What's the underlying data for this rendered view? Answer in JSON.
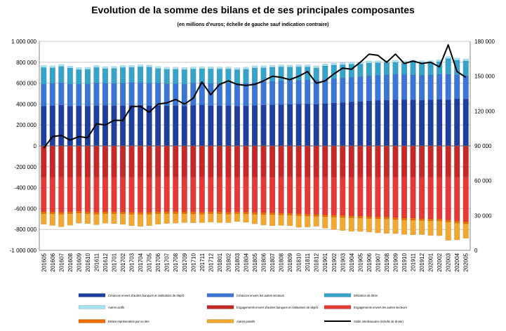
{
  "chart_data": {
    "type": "bar",
    "title": "Evolution  de la somme des bilans  et de ses principales  composantes",
    "subtitle": "(en millions d'euros; échelle de gauche sauf indication contraire)",
    "categories": [
      "201605",
      "201606",
      "201607",
      "201608",
      "201609",
      "201610",
      "201611",
      "201612",
      "201701",
      "201702",
      "201703",
      "201704",
      "201705",
      "201706",
      "201707",
      "201708",
      "201709",
      "201710",
      "201711",
      "201712",
      "201801",
      "201802",
      "201803",
      "201804",
      "201805",
      "201806",
      "201807",
      "201808",
      "201809",
      "201810",
      "201811",
      "201812",
      "201901",
      "201902",
      "201903",
      "201904",
      "201905",
      "201906",
      "201907",
      "201908",
      "201909",
      "201910",
      "201911",
      "201912",
      "202001",
      "202002",
      "202003",
      "202004",
      "202005"
    ],
    "left_axis": {
      "ylim": [
        -1000000,
        1000000
      ],
      "ticks": [
        1000000,
        800000,
        600000,
        400000,
        200000,
        0,
        -200000,
        -400000,
        -600000,
        -800000,
        -1000000
      ],
      "tick_labels": [
        "1 000 000",
        "800 000",
        "600 000",
        "400 000",
        "200 000",
        "0",
        "-200 000",
        "-400 000",
        "-600 000",
        "-800 000",
        "-1 000 000"
      ]
    },
    "right_axis": {
      "ylim": [
        0,
        180000
      ],
      "ticks": [
        180000,
        150000,
        120000,
        90000,
        60000,
        30000,
        0
      ],
      "tick_labels": [
        "180 000",
        "150 000",
        "120 000",
        "90 000",
        "60 000",
        "30 000",
        "0"
      ]
    },
    "grid": true,
    "legend_position": "bottom",
    "stack_groups": {
      "positive": [
        "Créances envers d'autres banques et institutions de dépôt",
        "Créances envers les autres secteurs",
        "Détention de titres",
        "Autres actifs"
      ],
      "negative": [
        "Engagements envers d'autres banques et institutions de dépôt",
        "Engagements envers les autres secteurs",
        "Dettes représentées par un titre",
        "Autres passifs"
      ]
    },
    "series": [
      {
        "name": "Créances envers d'autres banques et institutions de dépôt",
        "color": "#1f3f9f",
        "axis": "left",
        "values": [
          380000,
          385000,
          390000,
          380000,
          382000,
          380000,
          385000,
          388000,
          383000,
          385000,
          388000,
          390000,
          385000,
          388000,
          383000,
          385000,
          380000,
          388000,
          392000,
          385000,
          383000,
          385000,
          380000,
          382000,
          386000,
          390000,
          392000,
          395000,
          398000,
          400000,
          402000,
          398000,
          405000,
          410000,
          415000,
          420000,
          425000,
          430000,
          435000,
          438000,
          440000,
          442000,
          440000,
          438000,
          440000,
          445000,
          440000,
          450000,
          448000
        ]
      },
      {
        "name": "Créances envers les autres secteurs",
        "color": "#3b75d6",
        "axis": "left",
        "values": [
          210000,
          212000,
          215000,
          210000,
          208000,
          212000,
          215000,
          210000,
          213000,
          215000,
          218000,
          216000,
          214000,
          212000,
          210000,
          208000,
          210000,
          212000,
          214000,
          212000,
          210000,
          215000,
          218000,
          216000,
          220000,
          222000,
          225000,
          228000,
          226000,
          224000,
          226000,
          228000,
          230000,
          232000,
          235000,
          236000,
          238000,
          240000,
          240000,
          242000,
          244000,
          240000,
          238000,
          236000,
          238000,
          240000,
          245000,
          230000,
          225000
        ]
      },
      {
        "name": "Détention de titres",
        "color": "#36a3c9",
        "axis": "left",
        "values": [
          160000,
          150000,
          155000,
          155000,
          140000,
          140000,
          150000,
          140000,
          145000,
          150000,
          145000,
          150000,
          155000,
          140000,
          140000,
          140000,
          140000,
          135000,
          132000,
          140000,
          142000,
          135000,
          130000,
          135000,
          140000,
          135000,
          135000,
          132000,
          130000,
          132000,
          128000,
          120000,
          130000,
          130000,
          126000,
          125000,
          120000,
          122000,
          120000,
          118000,
          115000,
          112000,
          125000,
          120000,
          118000,
          120000,
          150000,
          140000,
          140000
        ]
      },
      {
        "name": "Autres actifs",
        "color": "#a5e3f2",
        "axis": "left",
        "values": [
          20000,
          20000,
          20000,
          20000,
          20000,
          20000,
          20000,
          20000,
          20000,
          20000,
          20000,
          20000,
          20000,
          20000,
          20000,
          20000,
          20000,
          20000,
          20000,
          20000,
          20000,
          20000,
          20000,
          20000,
          20000,
          20000,
          20000,
          20000,
          20000,
          20000,
          20000,
          20000,
          20000,
          20000,
          20000,
          20000,
          20000,
          20000,
          20000,
          20000,
          20000,
          20000,
          20000,
          20000,
          20000,
          20000,
          20000,
          20000,
          20000
        ]
      },
      {
        "name": "Engagements envers d'autres banques et institutions de dépôt",
        "color": "#c62828",
        "axis": "left",
        "values": [
          -300000,
          -300000,
          -300000,
          -300000,
          -300000,
          -300000,
          -300000,
          -300000,
          -300000,
          -300000,
          -300000,
          -300000,
          -300000,
          -300000,
          -300000,
          -300000,
          -300000,
          -300000,
          -300000,
          -300000,
          -300000,
          -300000,
          -300000,
          -300000,
          -300000,
          -300000,
          -300000,
          -300000,
          -300000,
          -300000,
          -300000,
          -300000,
          -300000,
          -300000,
          -300000,
          -300000,
          -300000,
          -300000,
          -300000,
          -300000,
          -300000,
          -300000,
          -300000,
          -300000,
          -300000,
          -300000,
          -300000,
          -300000,
          -300000
        ]
      },
      {
        "name": "Engagements envers les autres secteurs",
        "color": "#e53935",
        "axis": "left",
        "values": [
          -330000,
          -332000,
          -335000,
          -330000,
          -325000,
          -330000,
          -335000,
          -330000,
          -330000,
          -332000,
          -335000,
          -336000,
          -334000,
          -330000,
          -328000,
          -330000,
          -330000,
          -332000,
          -335000,
          -330000,
          -330000,
          -335000,
          -330000,
          -332000,
          -336000,
          -338000,
          -340000,
          -342000,
          -345000,
          -350000,
          -352000,
          -355000,
          -358000,
          -362000,
          -365000,
          -368000,
          -372000,
          -375000,
          -378000,
          -380000,
          -385000,
          -388000,
          -392000,
          -395000,
          -398000,
          -400000,
          -410000,
          -420000,
          -425000
        ]
      },
      {
        "name": "Dettes représentées par un titre",
        "color": "#ef6c00",
        "axis": "left",
        "values": [
          -20000,
          -20000,
          -20000,
          -20000,
          -20000,
          -20000,
          -20000,
          -20000,
          -20000,
          -20000,
          -20000,
          -20000,
          -20000,
          -20000,
          -20000,
          -20000,
          -20000,
          -20000,
          -20000,
          -20000,
          -20000,
          -20000,
          -20000,
          -20000,
          -20000,
          -20000,
          -20000,
          -20000,
          -20000,
          -20000,
          -20000,
          -20000,
          -20000,
          -20000,
          -20000,
          -20000,
          -20000,
          -20000,
          -20000,
          -20000,
          -20000,
          -20000,
          -20000,
          -20000,
          -20000,
          -20000,
          -20000,
          -20000,
          -20000
        ]
      },
      {
        "name": "Autres passifs",
        "color": "#f0a830",
        "axis": "left",
        "values": [
          -100000,
          -110000,
          -120000,
          -110000,
          -95000,
          -95000,
          -100000,
          -90000,
          -95000,
          -100000,
          -110000,
          -115000,
          -110000,
          -100000,
          -95000,
          -90000,
          -85000,
          -85000,
          -80000,
          -80000,
          -85000,
          -80000,
          -75000,
          -80000,
          -90000,
          -100000,
          -105000,
          -100000,
          -100000,
          -110000,
          -105000,
          -95000,
          -110000,
          -118000,
          -125000,
          -130000,
          -128000,
          -130000,
          -135000,
          -138000,
          -135000,
          -140000,
          -140000,
          -135000,
          -140000,
          -140000,
          -175000,
          -160000,
          -140000
        ]
      },
      {
        "name": "Solde interbancaire (échelle de droite)",
        "color": "#000000",
        "axis": "right",
        "type": "line",
        "values": [
          88000,
          98000,
          99000,
          95000,
          98000,
          97000,
          109000,
          108000,
          112000,
          112000,
          124000,
          124000,
          119000,
          126000,
          127000,
          130000,
          126000,
          131000,
          145000,
          134000,
          143000,
          146000,
          143000,
          142000,
          143000,
          146000,
          150000,
          149000,
          147000,
          150000,
          154000,
          144000,
          146000,
          152000,
          157000,
          156000,
          162000,
          169000,
          168000,
          162000,
          169000,
          161000,
          163000,
          161000,
          162000,
          158000,
          177000,
          154000,
          149000
        ]
      }
    ]
  }
}
